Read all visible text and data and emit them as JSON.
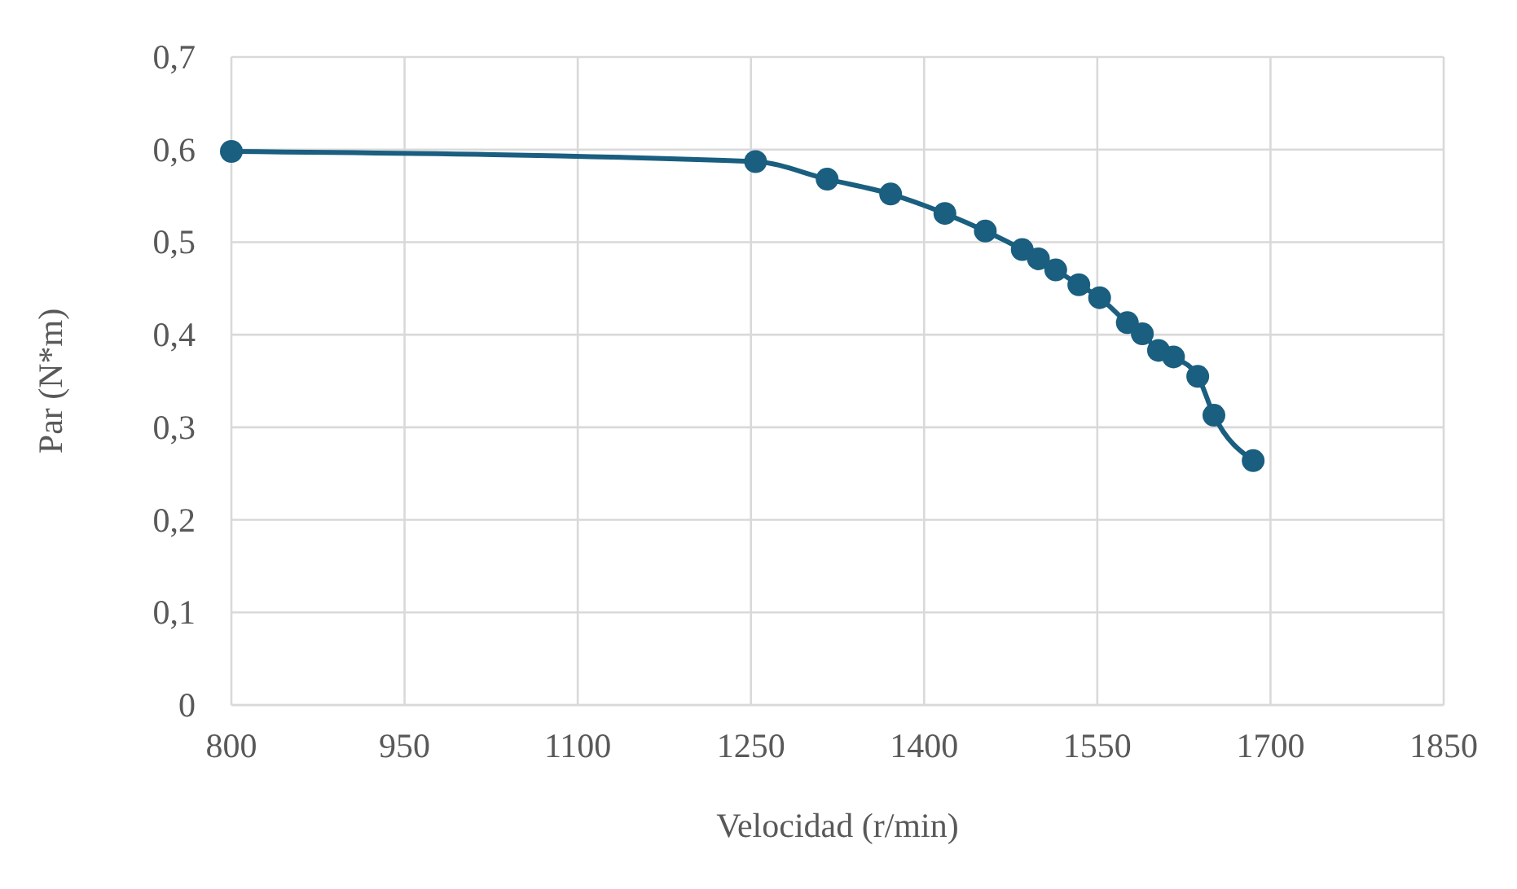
{
  "chart_data": {
    "type": "line",
    "xlabel": "Velocidad (r/min)",
    "ylabel": "Par (N*m)",
    "xlim": [
      800,
      1850
    ],
    "xticks": [
      800,
      950,
      1100,
      1250,
      1400,
      1550,
      1700,
      1850
    ],
    "ylim": [
      0,
      0.7
    ],
    "yticks": [
      {
        "value": 0,
        "label": "0"
      },
      {
        "value": 0.1,
        "label": "0,1"
      },
      {
        "value": 0.2,
        "label": "0,2"
      },
      {
        "value": 0.3,
        "label": "0,3"
      },
      {
        "value": 0.4,
        "label": "0,4"
      },
      {
        "value": 0.5,
        "label": "0,5"
      },
      {
        "value": 0.6,
        "label": "0,6"
      },
      {
        "value": 0.7,
        "label": "0,7"
      }
    ],
    "grid": true,
    "marker": "circle",
    "series": [
      {
        "color": "#1a5e80",
        "x": [
          800,
          1254,
          1316,
          1371,
          1418,
          1453,
          1485,
          1499,
          1514,
          1534,
          1552,
          1576,
          1589,
          1603,
          1616,
          1637,
          1651,
          1685
        ],
        "values": [
          0.598,
          0.587,
          0.568,
          0.552,
          0.531,
          0.512,
          0.492,
          0.482,
          0.47,
          0.454,
          0.44,
          0.413,
          0.401,
          0.383,
          0.376,
          0.355,
          0.313,
          0.264
        ]
      }
    ]
  }
}
